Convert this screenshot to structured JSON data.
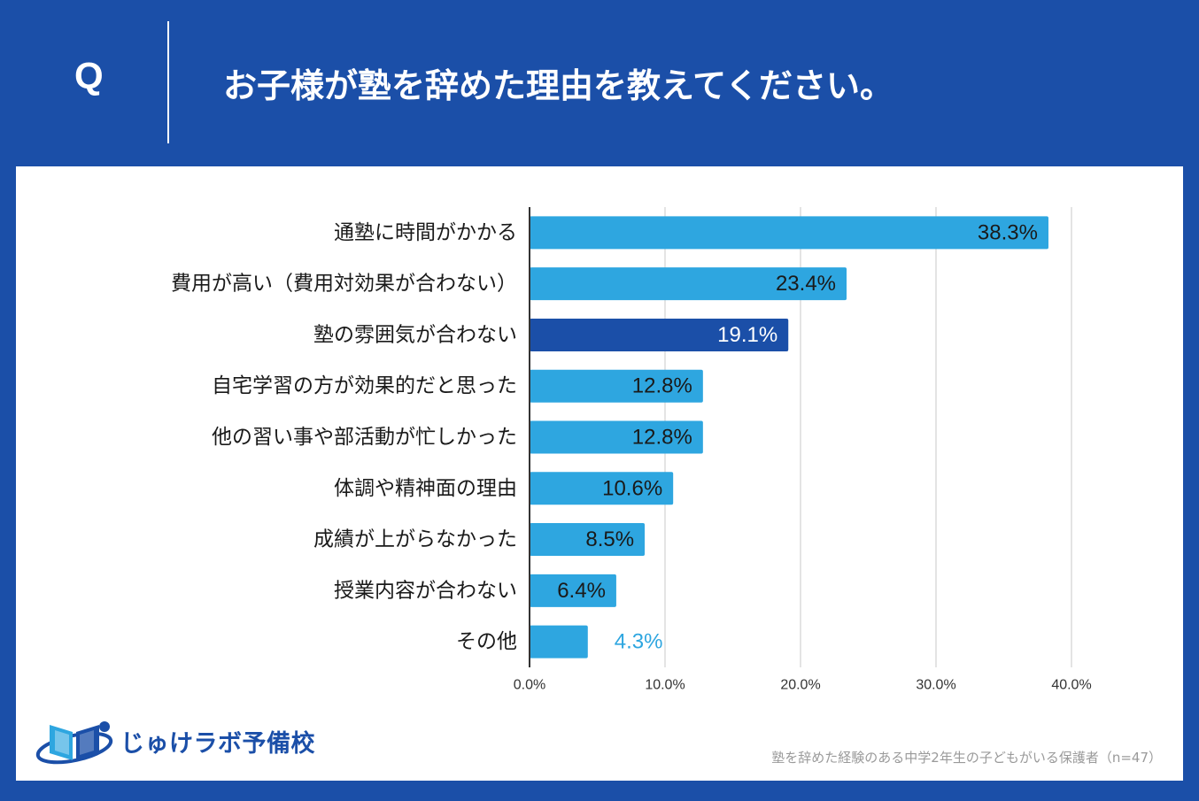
{
  "header": {
    "q_label": "Q",
    "question": "お子様が塾を辞めた理由を教えてください。"
  },
  "chart_data": {
    "type": "bar",
    "orientation": "horizontal",
    "categories": [
      "通塾に時間がかかる",
      "費用が高い（費用対効果が合わない）",
      "塾の雰囲気が合わない",
      "自宅学習の方が効果的だと思った",
      "他の習い事や部活動が忙しかった",
      "体調や精神面の理由",
      "成績が上がらなかった",
      "授業内容が合わない",
      "その他"
    ],
    "values": [
      38.3,
      23.4,
      19.1,
      12.8,
      12.8,
      10.6,
      8.5,
      6.4,
      4.3
    ],
    "value_labels": [
      "38.3%",
      "23.4%",
      "19.1%",
      "12.8%",
      "12.8%",
      "10.6%",
      "8.5%",
      "6.4%",
      "4.3%"
    ],
    "highlight_index": 2,
    "xlim": [
      0,
      40
    ],
    "x_ticks": [
      "0.0%",
      "10.0%",
      "20.0%",
      "30.0%",
      "40.0%"
    ],
    "x_tick_values": [
      0,
      10,
      20,
      30,
      40
    ],
    "grid": true,
    "colors": {
      "bar": "#2ea6e0",
      "highlight": "#1b4fa8",
      "label_dark": "#1a1a1a",
      "label_light": "#ffffff",
      "label_outside": "#2ea6e0"
    }
  },
  "logo": {
    "name": "じゅけラボ予備校",
    "icon": "open-book-globe-icon"
  },
  "footnote": "塾を辞めた経験のある中学2年生の子どもがいる保護者（n=47）"
}
